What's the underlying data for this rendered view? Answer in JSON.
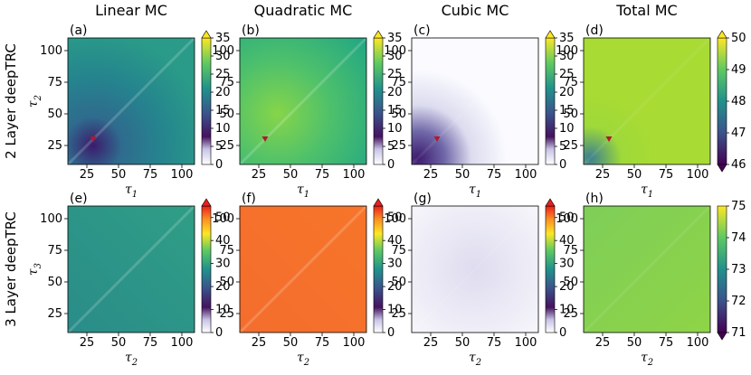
{
  "figure": {
    "column_titles": [
      "Linear MC",
      "Quadratic MC",
      "Cubic MC",
      "Total MC"
    ],
    "row_titles": [
      "2 Layer deepTRC",
      "3 Layer deepTRC"
    ]
  },
  "chart_data": [
    {
      "type": "heatmap",
      "panel": "(a)",
      "title": "Linear MC",
      "xlabel": "τ1",
      "ylabel": "τ2",
      "xticks": [
        25,
        50,
        75,
        100
      ],
      "yticks": [
        25,
        50,
        75,
        100
      ],
      "xlim": [
        10,
        110
      ],
      "ylim": [
        10,
        110
      ],
      "colorbar": {
        "min": 0,
        "max": 35,
        "ticks": [
          0,
          5,
          10,
          15,
          20,
          25,
          30,
          35
        ],
        "cmap": "viridis_white",
        "extend": "max"
      },
      "marker": {
        "x": 30,
        "y": 30
      }
    },
    {
      "type": "heatmap",
      "panel": "(b)",
      "title": "Quadratic MC",
      "xlabel": "τ1",
      "ylabel": "",
      "xticks": [
        25,
        50,
        75,
        100
      ],
      "yticks": [
        25,
        50,
        75,
        100
      ],
      "xlim": [
        10,
        110
      ],
      "ylim": [
        10,
        110
      ],
      "colorbar": {
        "min": 0,
        "max": 35,
        "ticks": [
          0,
          5,
          10,
          15,
          20,
          25,
          30,
          35
        ],
        "cmap": "viridis_white",
        "extend": "max"
      },
      "marker": {
        "x": 30,
        "y": 30
      }
    },
    {
      "type": "heatmap",
      "panel": "(c)",
      "title": "Cubic MC",
      "xlabel": "τ1",
      "ylabel": "",
      "xticks": [
        25,
        50,
        75,
        100
      ],
      "yticks": [
        25,
        50,
        75,
        100
      ],
      "xlim": [
        10,
        110
      ],
      "ylim": [
        10,
        110
      ],
      "colorbar": {
        "min": 0,
        "max": 35,
        "ticks": [
          0,
          5,
          10,
          15,
          20,
          25,
          30,
          35
        ],
        "cmap": "viridis_white",
        "extend": "max"
      },
      "marker": {
        "x": 30,
        "y": 30
      }
    },
    {
      "type": "heatmap",
      "panel": "(d)",
      "title": "Total MC",
      "xlabel": "τ1",
      "ylabel": "",
      "xticks": [
        25,
        50,
        75,
        100
      ],
      "yticks": [
        25,
        50,
        75,
        100
      ],
      "xlim": [
        10,
        110
      ],
      "ylim": [
        10,
        110
      ],
      "colorbar": {
        "min": 46,
        "max": 50,
        "ticks": [
          46,
          47,
          48,
          49,
          50
        ],
        "cmap": "viridis",
        "extend": "both"
      },
      "marker": {
        "x": 30,
        "y": 30
      }
    },
    {
      "type": "heatmap",
      "panel": "(e)",
      "title": "",
      "xlabel": "τ2",
      "ylabel": "τ3",
      "xticks": [
        25,
        50,
        75,
        100
      ],
      "yticks": [
        25,
        50,
        75,
        100
      ],
      "xlim": [
        10,
        110
      ],
      "ylim": [
        10,
        110
      ],
      "colorbar": {
        "min": 0,
        "max": 55,
        "ticks": [
          0,
          10,
          20,
          30,
          40,
          50
        ],
        "cmap": "viridis_white_hot",
        "extend": "max"
      }
    },
    {
      "type": "heatmap",
      "panel": "(f)",
      "title": "",
      "xlabel": "τ2",
      "ylabel": "",
      "xticks": [
        25,
        50,
        75,
        100
      ],
      "yticks": [
        25,
        50,
        75,
        100
      ],
      "xlim": [
        10,
        110
      ],
      "ylim": [
        10,
        110
      ],
      "colorbar": {
        "min": 0,
        "max": 55,
        "ticks": [
          0,
          10,
          20,
          30,
          40,
          50
        ],
        "cmap": "viridis_white_hot",
        "extend": "max"
      }
    },
    {
      "type": "heatmap",
      "panel": "(g)",
      "title": "",
      "xlabel": "τ2",
      "ylabel": "",
      "xticks": [
        25,
        50,
        75,
        100
      ],
      "yticks": [
        25,
        50,
        75,
        100
      ],
      "xlim": [
        10,
        110
      ],
      "ylim": [
        10,
        110
      ],
      "colorbar": {
        "min": 0,
        "max": 55,
        "ticks": [
          0,
          10,
          20,
          30,
          40,
          50
        ],
        "cmap": "viridis_white_hot",
        "extend": "max"
      }
    },
    {
      "type": "heatmap",
      "panel": "(h)",
      "title": "",
      "xlabel": "τ2",
      "ylabel": "",
      "xticks": [
        25,
        50,
        75,
        100
      ],
      "yticks": [
        25,
        50,
        75,
        100
      ],
      "xlim": [
        10,
        110
      ],
      "ylim": [
        10,
        110
      ],
      "colorbar": {
        "min": 71,
        "max": 75,
        "ticks": [
          71,
          72,
          73,
          74,
          75
        ],
        "cmap": "viridis",
        "extend": "min"
      }
    }
  ]
}
